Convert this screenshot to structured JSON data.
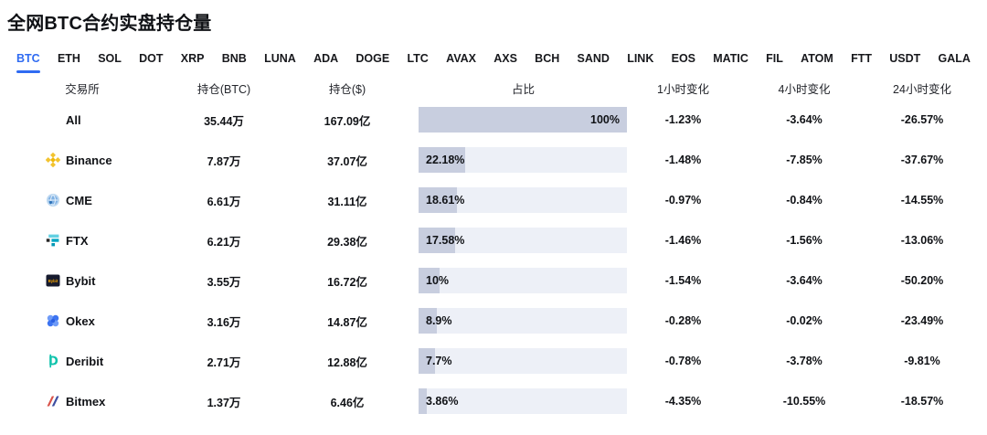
{
  "page": {
    "title": "全网BTC合约实盘持仓量"
  },
  "tabs": {
    "active": "BTC",
    "items": [
      {
        "label": "BTC"
      },
      {
        "label": "ETH"
      },
      {
        "label": "SOL"
      },
      {
        "label": "DOT"
      },
      {
        "label": "XRP"
      },
      {
        "label": "BNB"
      },
      {
        "label": "LUNA"
      },
      {
        "label": "ADA"
      },
      {
        "label": "DOGE"
      },
      {
        "label": "LTC"
      },
      {
        "label": "AVAX"
      },
      {
        "label": "AXS"
      },
      {
        "label": "BCH"
      },
      {
        "label": "SAND"
      },
      {
        "label": "LINK"
      },
      {
        "label": "EOS"
      },
      {
        "label": "MATIC"
      },
      {
        "label": "FIL"
      },
      {
        "label": "ATOM"
      },
      {
        "label": "FTT"
      },
      {
        "label": "USDT"
      },
      {
        "label": "GALA"
      }
    ]
  },
  "table": {
    "headers": {
      "exchange": "交易所",
      "position_btc": "持仓(BTC)",
      "position_usd": "持仓($)",
      "share": "占比",
      "change_1h": "1小时变化",
      "change_4h": "4小时变化",
      "change_24h": "24小时变化"
    },
    "rows": [
      {
        "exchange": "All",
        "icon": "none",
        "position_btc": "35.44万",
        "position_usd": "167.09亿",
        "share_label": "100%",
        "share_pct": 100,
        "change_1h": "-1.23%",
        "change_4h": "-3.64%",
        "change_24h": "-26.57%"
      },
      {
        "exchange": "Binance",
        "icon": "binance-icon",
        "position_btc": "7.87万",
        "position_usd": "37.07亿",
        "share_label": "22.18%",
        "share_pct": 22.18,
        "change_1h": "-1.48%",
        "change_4h": "-7.85%",
        "change_24h": "-37.67%"
      },
      {
        "exchange": "CME",
        "icon": "cme-icon",
        "position_btc": "6.61万",
        "position_usd": "31.11亿",
        "share_label": "18.61%",
        "share_pct": 18.61,
        "change_1h": "-0.97%",
        "change_4h": "-0.84%",
        "change_24h": "-14.55%"
      },
      {
        "exchange": "FTX",
        "icon": "ftx-icon",
        "position_btc": "6.21万",
        "position_usd": "29.38亿",
        "share_label": "17.58%",
        "share_pct": 17.58,
        "change_1h": "-1.46%",
        "change_4h": "-1.56%",
        "change_24h": "-13.06%"
      },
      {
        "exchange": "Bybit",
        "icon": "bybit-icon",
        "position_btc": "3.55万",
        "position_usd": "16.72亿",
        "share_label": "10%",
        "share_pct": 10,
        "change_1h": "-1.54%",
        "change_4h": "-3.64%",
        "change_24h": "-50.20%"
      },
      {
        "exchange": "Okex",
        "icon": "okex-icon",
        "position_btc": "3.16万",
        "position_usd": "14.87亿",
        "share_label": "8.9%",
        "share_pct": 8.9,
        "change_1h": "-0.28%",
        "change_4h": "-0.02%",
        "change_24h": "-23.49%"
      },
      {
        "exchange": "Deribit",
        "icon": "deribit-icon",
        "position_btc": "2.71万",
        "position_usd": "12.88亿",
        "share_label": "7.7%",
        "share_pct": 7.7,
        "change_1h": "-0.78%",
        "change_4h": "-3.78%",
        "change_24h": "-9.81%"
      },
      {
        "exchange": "Bitmex",
        "icon": "bitmex-icon",
        "position_btc": "1.37万",
        "position_usd": "6.46亿",
        "share_label": "3.86%",
        "share_pct": 3.86,
        "change_1h": "-4.35%",
        "change_4h": "-10.55%",
        "change_24h": "-18.57%"
      }
    ]
  },
  "colors": {
    "accent": "#2f6bf2",
    "bar_fill": "#c8cedf",
    "bar_track": "#edf0f7"
  }
}
